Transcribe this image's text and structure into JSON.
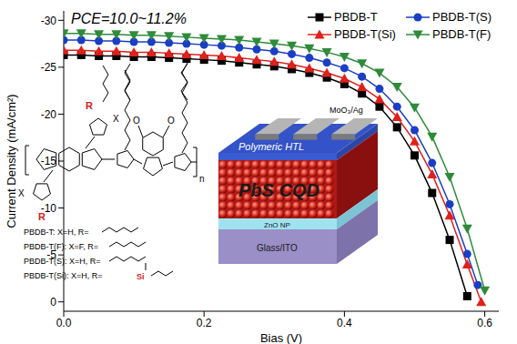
{
  "chart_data": {
    "type": "line",
    "title": "PCE=10.0~11.2%",
    "x_label": "Bias (V)",
    "y_label": "Current Density (mA/cm²)",
    "xlim": [
      0,
      0.62
    ],
    "ylim": [
      1,
      -31
    ],
    "xticks": [
      {
        "value": 0,
        "label": "0.0"
      },
      0.2,
      0.4,
      0.6
    ],
    "yticks": [
      -30,
      -25,
      -20,
      -15,
      -10,
      -5,
      0
    ],
    "grid": false,
    "legend": "upper right",
    "series": [
      {
        "name": "PBDB-T",
        "color": "#000000",
        "marker": "square",
        "line_style": "solid",
        "x": [
          0,
          0.025,
          0.05,
          0.075,
          0.1,
          0.125,
          0.15,
          0.175,
          0.2,
          0.225,
          0.25,
          0.275,
          0.3,
          0.325,
          0.35,
          0.375,
          0.4,
          0.425,
          0.45,
          0.475,
          0.5,
          0.525,
          0.55,
          0.575
        ],
        "values": [
          -26.3,
          -26.3,
          -26.2,
          -26.2,
          -26.1,
          -26.1,
          -26.0,
          -25.9,
          -25.8,
          -25.7,
          -25.5,
          -25.3,
          -25.1,
          -24.8,
          -24.4,
          -23.9,
          -23.2,
          -22.2,
          -20.8,
          -18.6,
          -15.6,
          -11.6,
          -6.6,
          -0.6
        ]
      },
      {
        "name": "PBDB-T(S)",
        "color": "#1a3fc4",
        "marker": "circle",
        "line_style": "solid",
        "x": [
          0,
          0.025,
          0.05,
          0.075,
          0.1,
          0.125,
          0.15,
          0.175,
          0.2,
          0.225,
          0.25,
          0.275,
          0.3,
          0.325,
          0.35,
          0.375,
          0.4,
          0.425,
          0.45,
          0.475,
          0.5,
          0.525,
          0.55,
          0.575,
          0.59
        ],
        "values": [
          -27.9,
          -27.9,
          -27.8,
          -27.8,
          -27.7,
          -27.7,
          -27.6,
          -27.5,
          -27.4,
          -27.3,
          -27.1,
          -26.9,
          -26.7,
          -26.4,
          -26.0,
          -25.5,
          -24.9,
          -24.0,
          -22.7,
          -20.8,
          -18.3,
          -14.8,
          -10.4,
          -5.1,
          -1.8
        ]
      },
      {
        "name": "PBDB-T(Si)",
        "color": "#e0201b",
        "marker": "triangle",
        "line_style": "solid",
        "x": [
          0,
          0.025,
          0.05,
          0.075,
          0.1,
          0.125,
          0.15,
          0.175,
          0.2,
          0.225,
          0.25,
          0.275,
          0.3,
          0.325,
          0.35,
          0.375,
          0.4,
          0.425,
          0.45,
          0.475,
          0.5,
          0.525,
          0.55,
          0.575,
          0.595
        ],
        "values": [
          -26.8,
          -26.8,
          -26.7,
          -26.7,
          -26.6,
          -26.6,
          -26.5,
          -26.4,
          -26.3,
          -26.2,
          -26.0,
          -25.8,
          -25.6,
          -25.3,
          -24.9,
          -24.4,
          -23.8,
          -22.9,
          -21.6,
          -19.7,
          -17.1,
          -13.6,
          -9.2,
          -4.0,
          0.0
        ]
      },
      {
        "name": "PBDB-T(F)",
        "color": "#2e8b3a",
        "marker": "triangle-down",
        "line_style": "solid",
        "x": [
          0,
          0.025,
          0.05,
          0.075,
          0.1,
          0.125,
          0.15,
          0.175,
          0.2,
          0.225,
          0.25,
          0.275,
          0.3,
          0.325,
          0.35,
          0.375,
          0.4,
          0.425,
          0.45,
          0.475,
          0.5,
          0.525,
          0.55,
          0.575,
          0.6
        ],
        "values": [
          -28.6,
          -28.6,
          -28.5,
          -28.5,
          -28.4,
          -28.4,
          -28.3,
          -28.2,
          -28.1,
          -28.0,
          -27.9,
          -27.7,
          -27.5,
          -27.3,
          -27.0,
          -26.6,
          -26.1,
          -25.4,
          -24.4,
          -22.9,
          -20.7,
          -17.6,
          -13.3,
          -7.8,
          -1.2
        ]
      }
    ],
    "annotations": [
      "R",
      "X",
      "X",
      "R",
      "O",
      "O",
      "n",
      "PBDB-T: X=H, R=",
      "PBDB-T(F): X=F, R=",
      "PBDB-T(S): X=H, R=",
      "PBDB-T(Si): X=H, R=",
      "Si",
      "MoO₃/Ag",
      "Polymeric HTL",
      "PbS CQD",
      "ZnO NP",
      "Glass/ITO"
    ]
  }
}
